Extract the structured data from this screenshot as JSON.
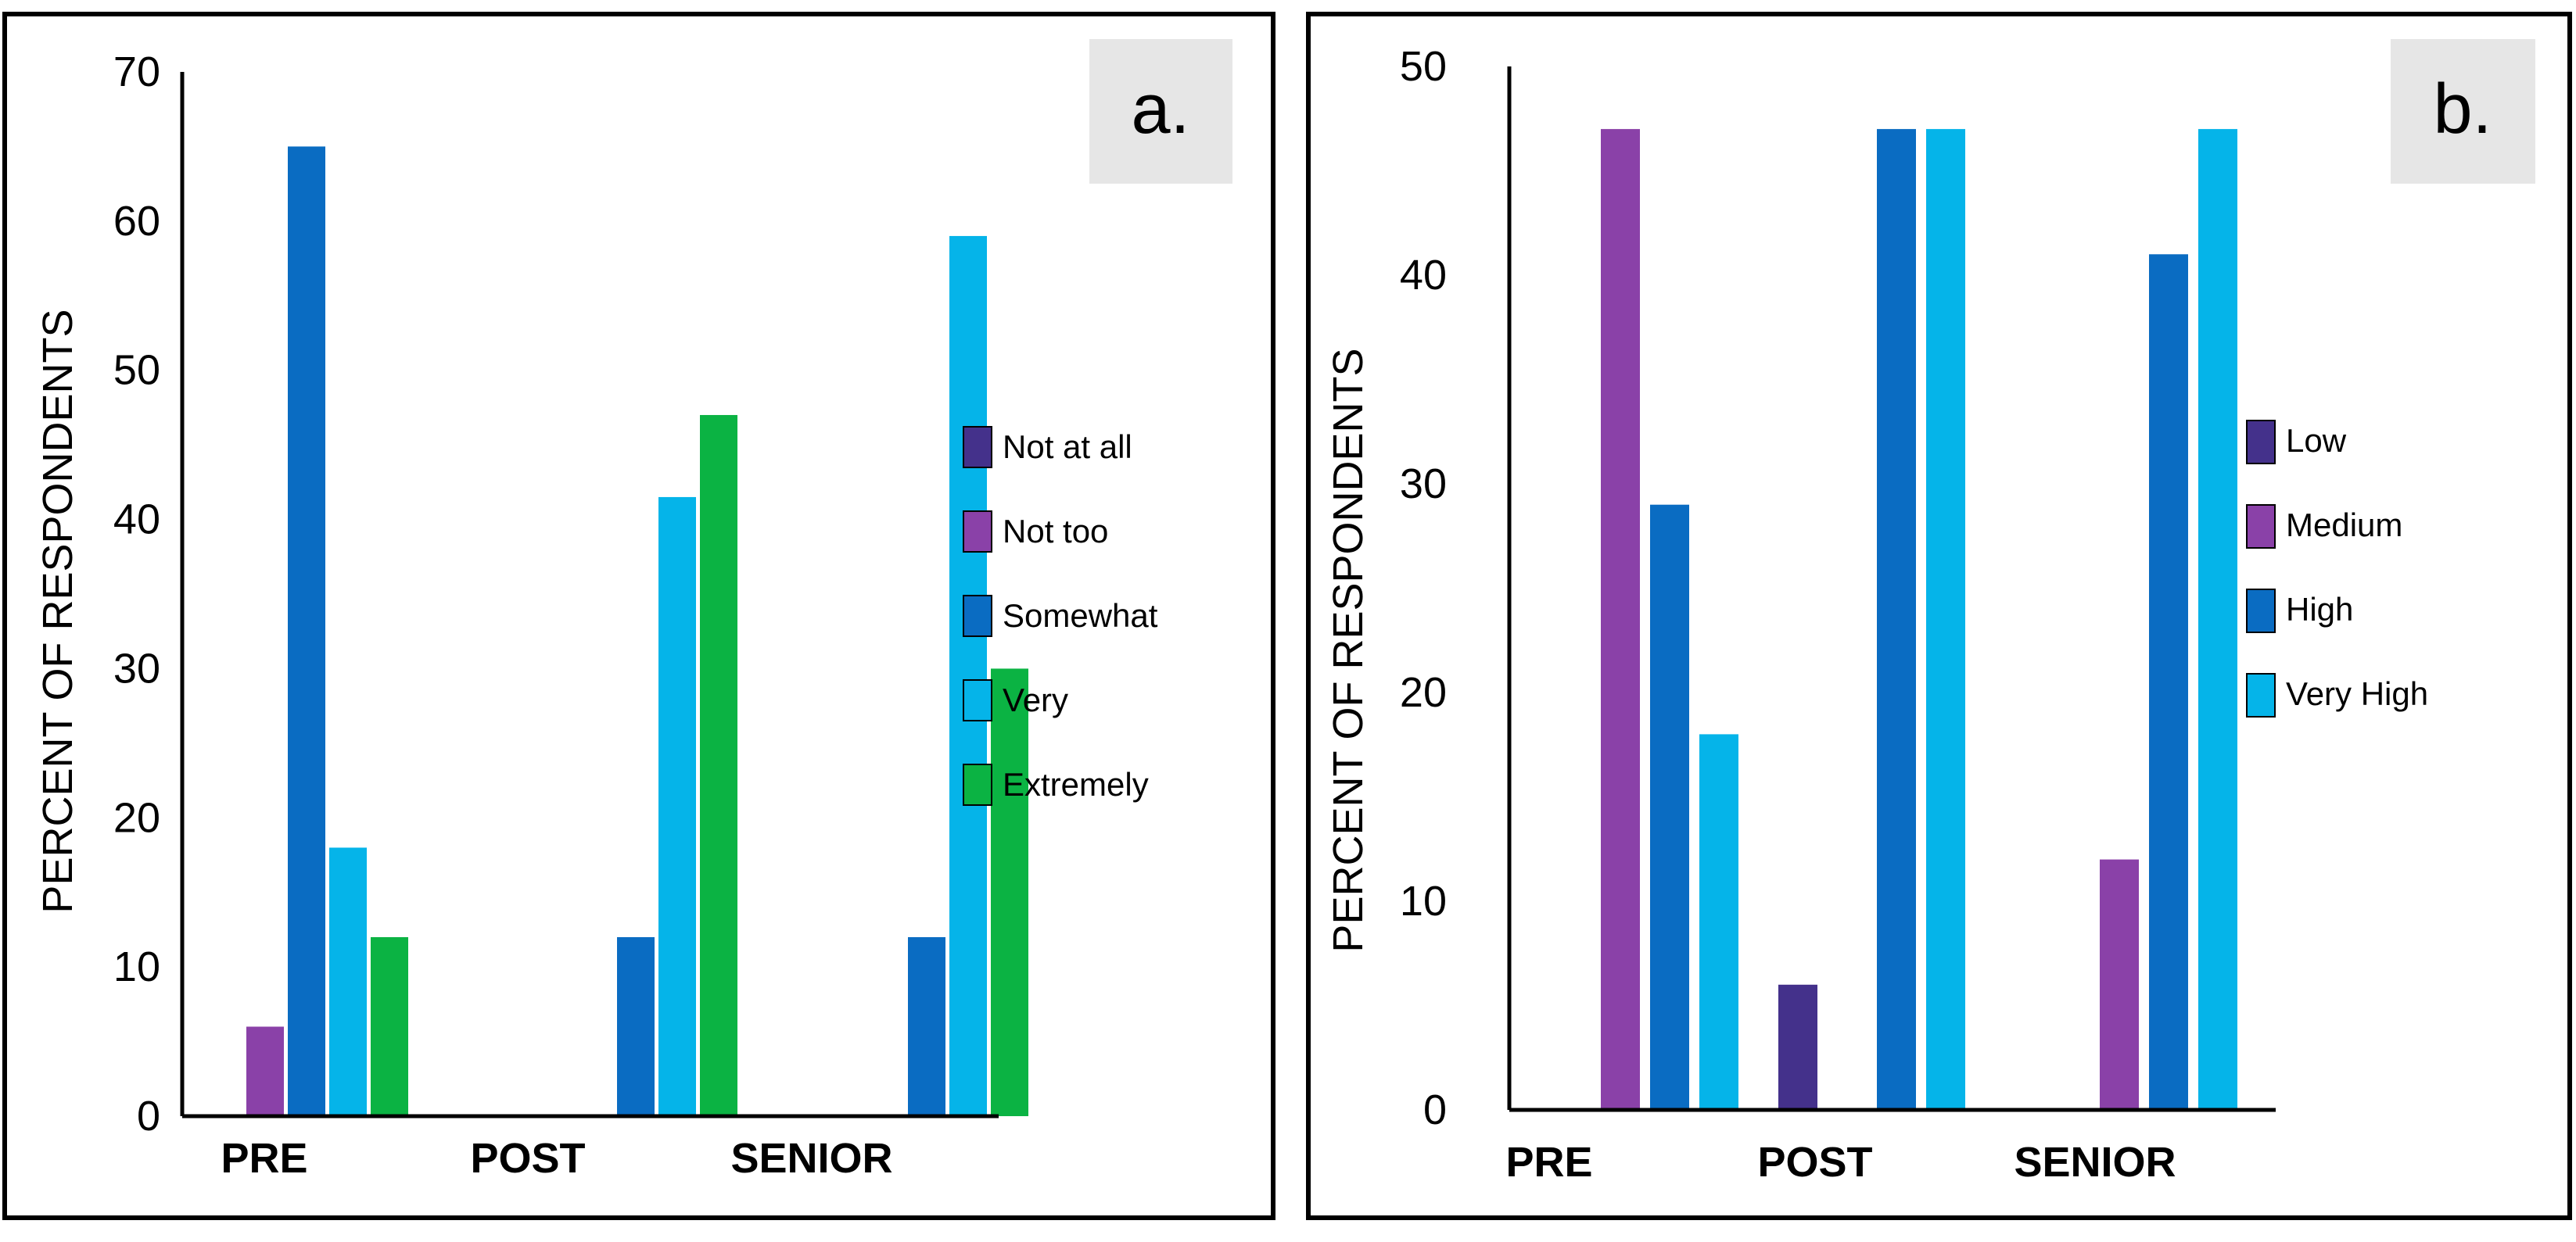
{
  "colors": {
    "dark_purple": "#44318b",
    "purple": "#8a41a8",
    "blue": "#0a6cc2",
    "light_blue": "#05b4e9",
    "green": "#0bb343",
    "letter_box": "#e6e6e6"
  },
  "chart_data": [
    {
      "type": "bar",
      "panel_label": "a.",
      "ylabel": "PERCENT OF RESPONDENTS",
      "xlabel": "",
      "ylim": [
        0,
        70
      ],
      "yticks": [
        0,
        10,
        20,
        30,
        40,
        50,
        60,
        70
      ],
      "categories": [
        "PRE",
        "POST",
        "SENIOR"
      ],
      "legend_position": "right",
      "series": [
        {
          "name": "Not at all",
          "color_key": "dark_purple",
          "values": [
            0,
            0,
            0
          ]
        },
        {
          "name": "Not too",
          "color_key": "purple",
          "values": [
            6,
            0,
            0
          ]
        },
        {
          "name": "Somewhat",
          "color_key": "blue",
          "values": [
            65,
            12,
            12
          ]
        },
        {
          "name": "Very",
          "color_key": "light_blue",
          "values": [
            18,
            41.5,
            59
          ]
        },
        {
          "name": "Extremely",
          "color_key": "green",
          "values": [
            12,
            47,
            30
          ]
        }
      ]
    },
    {
      "type": "bar",
      "panel_label": "b.",
      "ylabel": "PERCENT OF RESPONDENTS",
      "xlabel": "",
      "ylim": [
        0,
        50
      ],
      "yticks": [
        0,
        10,
        20,
        30,
        40,
        50
      ],
      "categories": [
        "PRE",
        "POST",
        "SENIOR"
      ],
      "legend_position": "right",
      "series": [
        {
          "name": "Low",
          "color_key": "dark_purple",
          "values": [
            0,
            6,
            0
          ]
        },
        {
          "name": "Medium",
          "color_key": "purple",
          "values": [
            47,
            0,
            12
          ]
        },
        {
          "name": "High",
          "color_key": "blue",
          "values": [
            29,
            47,
            41
          ]
        },
        {
          "name": "Very High",
          "color_key": "light_blue",
          "values": [
            18,
            47,
            47
          ]
        }
      ]
    }
  ]
}
